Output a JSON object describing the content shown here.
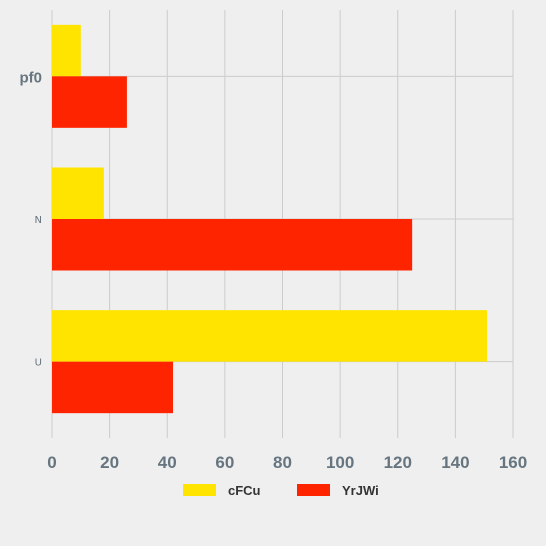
{
  "chart_data": {
    "type": "bar",
    "orientation": "horizontal",
    "categories": [
      "pf0",
      "N",
      "U"
    ],
    "series": [
      {
        "name": "cFCu",
        "color": "#FFE400",
        "values": [
          10,
          18,
          151
        ]
      },
      {
        "name": "YrJWi",
        "color": "#FF2400",
        "values": [
          26,
          125,
          42
        ]
      }
    ],
    "x_ticks": [
      "0",
      "20",
      "40",
      "60",
      "80",
      "100",
      "120",
      "140",
      "160"
    ],
    "xlim": [
      0,
      160
    ],
    "grid": true,
    "legend_position": "bottom"
  },
  "colors": {
    "background": "#efefef",
    "gridline": "#cccccc",
    "axis_text": "#66757f",
    "legend_text": "#333333"
  }
}
